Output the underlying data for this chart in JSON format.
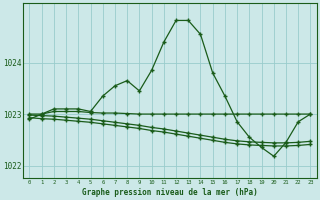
{
  "x": [
    0,
    1,
    2,
    3,
    4,
    5,
    6,
    7,
    8,
    9,
    10,
    11,
    12,
    13,
    14,
    15,
    16,
    17,
    18,
    19,
    20,
    21,
    22,
    23
  ],
  "line1": [
    1022.9,
    1023.0,
    1023.1,
    1023.1,
    1023.1,
    1023.05,
    1023.35,
    1023.55,
    1023.65,
    1023.45,
    1023.85,
    1024.4,
    1024.82,
    1024.82,
    1024.55,
    1023.8,
    1023.35,
    1022.85,
    1022.55,
    1022.35,
    1022.18,
    1022.45,
    1022.85,
    1023.0
  ],
  "line2": [
    1023.0,
    1023.0,
    1023.05,
    1023.05,
    1023.05,
    1023.03,
    1023.02,
    1023.02,
    1023.01,
    1023.0,
    1023.0,
    1023.0,
    1023.0,
    1023.0,
    1023.0,
    1023.0,
    1023.0,
    1023.0,
    1023.0,
    1023.0,
    1023.0,
    1023.0,
    1023.0,
    1023.0
  ],
  "line3": [
    1022.98,
    1022.97,
    1022.96,
    1022.94,
    1022.92,
    1022.9,
    1022.87,
    1022.84,
    1022.81,
    1022.78,
    1022.74,
    1022.71,
    1022.67,
    1022.63,
    1022.59,
    1022.55,
    1022.51,
    1022.48,
    1022.46,
    1022.45,
    1022.44,
    1022.44,
    1022.45,
    1022.47
  ],
  "line4": [
    1022.93,
    1022.91,
    1022.9,
    1022.88,
    1022.86,
    1022.84,
    1022.81,
    1022.78,
    1022.75,
    1022.72,
    1022.68,
    1022.65,
    1022.61,
    1022.57,
    1022.53,
    1022.49,
    1022.45,
    1022.42,
    1022.4,
    1022.39,
    1022.38,
    1022.38,
    1022.39,
    1022.41
  ],
  "bg_color": "#cce8e8",
  "line_color": "#1a5c1a",
  "grid_color": "#99cccc",
  "text_color": "#1a5c1a",
  "xlabel": "Graphe pression niveau de la mer (hPa)",
  "ylim": [
    1021.75,
    1025.15
  ],
  "yticks": [
    1022,
    1023,
    1024
  ],
  "xticks": [
    0,
    1,
    2,
    3,
    4,
    5,
    6,
    7,
    8,
    9,
    10,
    11,
    12,
    13,
    14,
    15,
    16,
    17,
    18,
    19,
    20,
    21,
    22,
    23
  ]
}
